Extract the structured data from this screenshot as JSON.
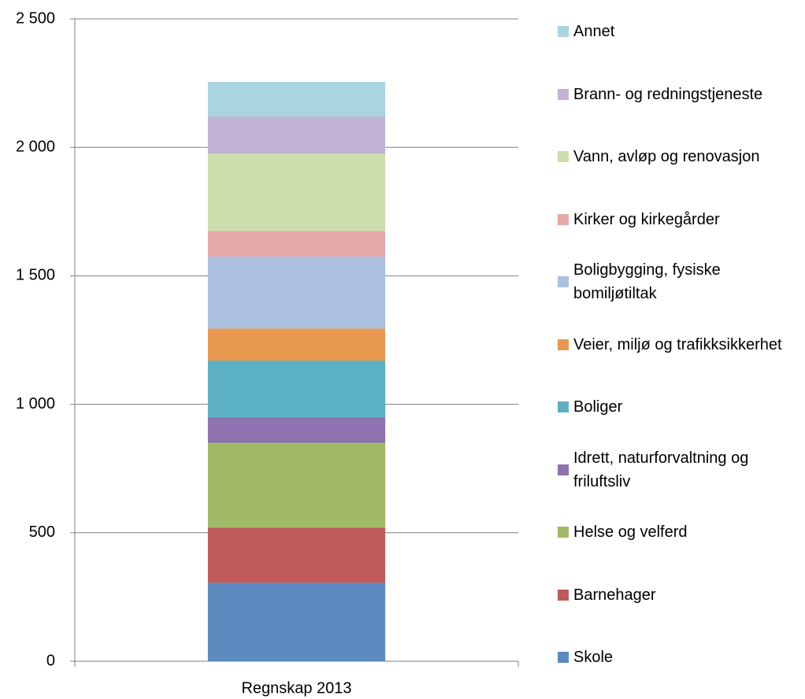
{
  "chart_data": {
    "type": "stacked_bar",
    "categories": [
      "Regnskap 2013"
    ],
    "series": [
      {
        "name": "Skole",
        "color": "#5b8bbf",
        "values": [
          305
        ]
      },
      {
        "name": "Barnehager",
        "color": "#bf5b5a",
        "values": [
          215
        ]
      },
      {
        "name": "Helse og velferd",
        "color": "#a1b967",
        "values": [
          330
        ]
      },
      {
        "name": "Idrett, naturforvaltning og friluftsliv",
        "color": "#8f72b0",
        "values": [
          100
        ]
      },
      {
        "name": "Boliger",
        "color": "#5cb0c4",
        "values": [
          220
        ]
      },
      {
        "name": "Veier, miljø og trafikksikkerhet",
        "color": "#e8994f",
        "values": [
          125
        ]
      },
      {
        "name": "Boligbygging, fysiske bomiljøtiltak",
        "color": "#abbfe0",
        "values": [
          280
        ]
      },
      {
        "name": "Kirker og kirkegårder",
        "color": "#e5a9a9",
        "values": [
          100
        ]
      },
      {
        "name": "Vann, avløp og renovasjon",
        "color": "#cddfad",
        "values": [
          300
        ]
      },
      {
        "name": "Brann- og redningstjeneste",
        "color": "#c1b2d6",
        "values": [
          145
        ]
      },
      {
        "name": "Annet",
        "color": "#a9d4e0",
        "values": [
          135
        ]
      }
    ],
    "ylim": [
      0,
      2500
    ],
    "yticks": [
      0,
      500,
      {
        "value": 1000,
        "label": "1 000"
      },
      {
        "value": 1500,
        "label": "1 500"
      },
      {
        "value": 2000,
        "label": "2 000"
      },
      {
        "value": 2500,
        "label": "2 500"
      }
    ],
    "grid": true,
    "legend": "right"
  }
}
